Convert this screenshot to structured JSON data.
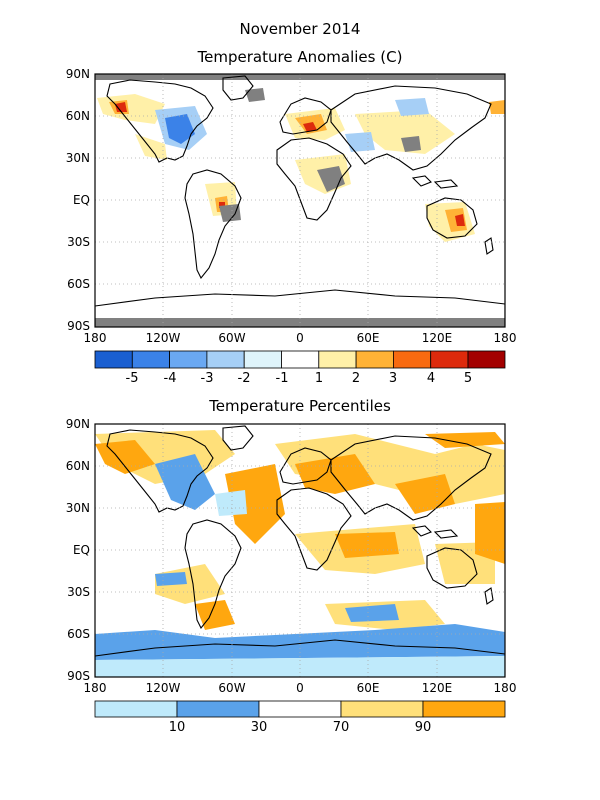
{
  "header": {
    "title": "November 2014"
  },
  "panels": [
    {
      "title": "Temperature Anomalies (C)",
      "lat_labels": [
        "90N",
        "60N",
        "30N",
        "EQ",
        "30S",
        "60S",
        "90S"
      ],
      "lon_labels": [
        "180",
        "120W",
        "60W",
        "0",
        "60E",
        "120E",
        "180"
      ],
      "colorbar": {
        "labels": [
          "-5",
          "-4",
          "-3",
          "-2",
          "-1",
          "1",
          "2",
          "3",
          "4",
          "5"
        ],
        "colors": [
          "#1a5fd1",
          "#3b82e8",
          "#6aa8f2",
          "#a6cff6",
          "#dff4fb",
          "#ffffff",
          "#fff0a8",
          "#ffb236",
          "#f86a10",
          "#dd2a0c",
          "#a30000"
        ]
      }
    },
    {
      "title": "Temperature Percentiles",
      "lat_labels": [
        "90N",
        "60N",
        "30N",
        "EQ",
        "30S",
        "60S",
        "90S"
      ],
      "lon_labels": [
        "180",
        "120W",
        "60W",
        "0",
        "60E",
        "120E",
        "180"
      ],
      "colorbar": {
        "labels": [
          "10",
          "30",
          "70",
          "90"
        ],
        "colors": [
          "#bfeafb",
          "#5aa2ea",
          "#ffffff",
          "#ffe07a",
          "#ffa70f"
        ]
      }
    }
  ]
}
